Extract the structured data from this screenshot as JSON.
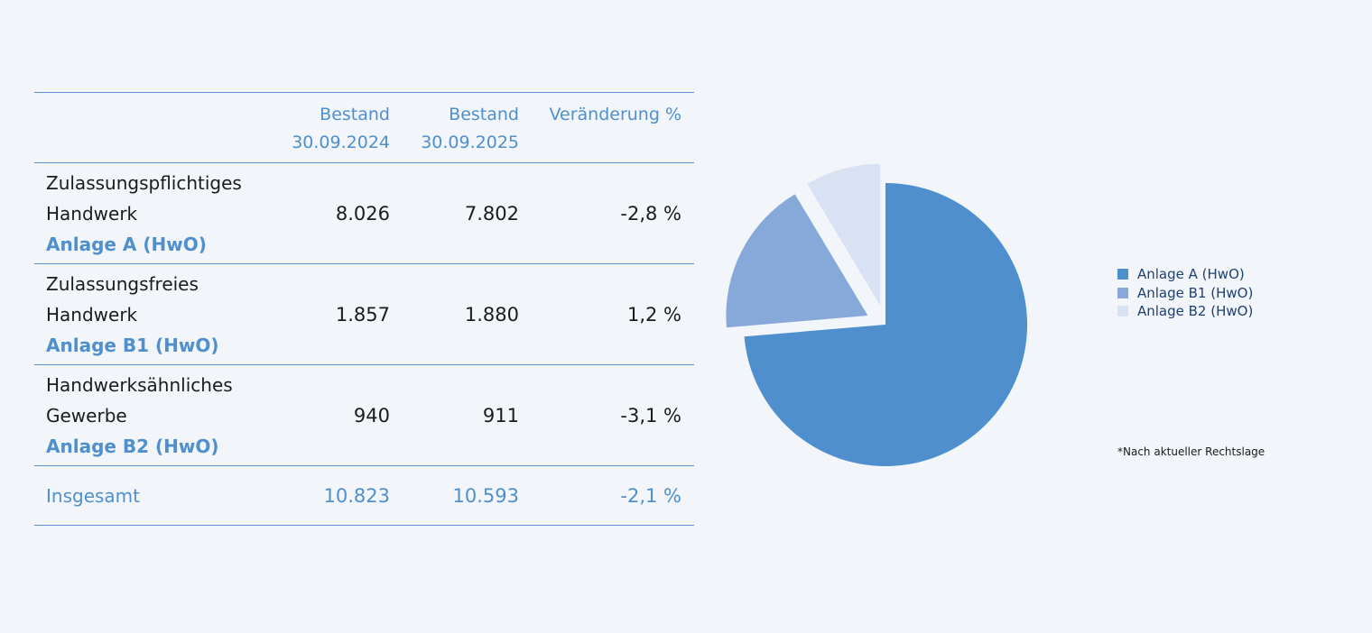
{
  "table": {
    "header": {
      "col1_line1": "Bestand",
      "col1_line2": "30.09.2024",
      "col2_line1": "Bestand",
      "col2_line2": "30.09.2025",
      "col3": "Veränderung  %"
    },
    "rows": [
      {
        "line1": "Zulassungspflichtiges",
        "line2": "Handwerk",
        "annex": "Anlage A (HwO)",
        "v2024": "8.026",
        "v2025": "7.802",
        "change": "-2,8 %"
      },
      {
        "line1": "Zulassungsfreies",
        "line2": "Handwerk",
        "annex": "Anlage B1 (HwO)",
        "v2024": "1.857",
        "v2025": "1.880",
        "change": "1,2 %"
      },
      {
        "line1": "Handwerksähnliches",
        "line2": "Gewerbe",
        "annex": "Anlage B2 (HwO)",
        "v2024": "940",
        "v2025": "911",
        "change": "-3,1 %"
      }
    ],
    "total": {
      "label": "Insgesamt",
      "v2024": "10.823",
      "v2025": "10.593",
      "change": "-2,1 %"
    }
  },
  "chart_data": {
    "type": "pie",
    "categories": [
      "Anlage A (HwO)",
      "Anlage B1 (HwO)",
      "Anlage B2 (HwO)"
    ],
    "values": [
      7802,
      1880,
      911
    ],
    "colors": [
      "#4f8fcd",
      "#86a9da",
      "#d9e2f4"
    ],
    "exploded": [
      false,
      true,
      true
    ],
    "legend_position": "right"
  },
  "legend": [
    {
      "label": "Anlage A (HwO)",
      "color": "#4f8fcd"
    },
    {
      "label": "Anlage B1 (HwO)",
      "color": "#86a9da"
    },
    {
      "label": "Anlage B2 (HwO)",
      "color": "#d9e2f4"
    }
  ],
  "footnote": "*Nach aktueller Rechtslage"
}
